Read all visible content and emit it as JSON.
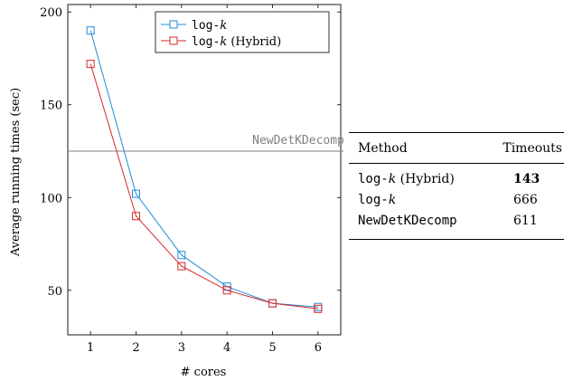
{
  "chart_data": {
    "type": "line",
    "xlabel": "# cores",
    "ylabel": "Average running times (sec)",
    "x": [
      1,
      2,
      3,
      4,
      5,
      6
    ],
    "xticks": [
      "1",
      "2",
      "3",
      "4",
      "5",
      "6"
    ],
    "yticks": [
      "50",
      "100",
      "150",
      "200"
    ],
    "xlim": [
      0.5,
      6.5
    ],
    "ylim": [
      26,
      204
    ],
    "grid": false,
    "legend": "top-right",
    "series": [
      {
        "name_prefix": "log-",
        "name_var": "k",
        "name_suffix": "",
        "color": "#1f8dd6",
        "values": [
          190,
          102,
          69,
          52,
          43,
          41
        ]
      },
      {
        "name_prefix": "log-",
        "name_var": "k",
        "name_suffix": " (Hybrid)",
        "color": "#d62728",
        "values": [
          172,
          90,
          63,
          50,
          43,
          40
        ]
      }
    ],
    "reference_line": {
      "label": "NewDetKDecomp",
      "value": 125,
      "color": "#808080"
    }
  },
  "table": {
    "headers": [
      "Method",
      "Timeouts"
    ],
    "rows": [
      {
        "prefix": "log-",
        "var": "k",
        "suffix": " (Hybrid)",
        "value": "143",
        "bold": true
      },
      {
        "prefix": "log-",
        "var": "k",
        "suffix": "",
        "value": "666",
        "bold": false
      },
      {
        "prefix": "NewDetKDecomp",
        "var": "",
        "suffix": "",
        "value": "611",
        "bold": false
      }
    ]
  }
}
